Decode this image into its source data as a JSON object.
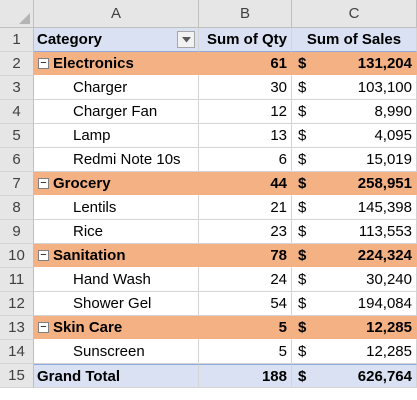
{
  "columns": [
    "A",
    "B",
    "C"
  ],
  "header": {
    "category": "Category",
    "qty": "Sum of Qty",
    "sales": "Sum of Sales"
  },
  "currency_symbol": "$",
  "rows": [
    {
      "num": "2",
      "type": "group",
      "label": "Electronics",
      "qty": "61",
      "sales": "131,204"
    },
    {
      "num": "3",
      "type": "item",
      "label": "Charger",
      "qty": "30",
      "sales": "103,100"
    },
    {
      "num": "4",
      "type": "item",
      "label": "Charger  Fan",
      "qty": "12",
      "sales": "8,990"
    },
    {
      "num": "5",
      "type": "item",
      "label": "Lamp",
      "qty": "13",
      "sales": "4,095"
    },
    {
      "num": "6",
      "type": "item",
      "label": "Redmi Note 10s",
      "qty": "6",
      "sales": "15,019"
    },
    {
      "num": "7",
      "type": "group",
      "label": "Grocery",
      "qty": "44",
      "sales": "258,951"
    },
    {
      "num": "8",
      "type": "item",
      "label": "Lentils",
      "qty": "21",
      "sales": "145,398"
    },
    {
      "num": "9",
      "type": "item",
      "label": "Rice",
      "qty": "23",
      "sales": "113,553"
    },
    {
      "num": "10",
      "type": "group",
      "label": "Sanitation",
      "qty": "78",
      "sales": "224,324"
    },
    {
      "num": "11",
      "type": "item",
      "label": "Hand Wash",
      "qty": "24",
      "sales": "30,240"
    },
    {
      "num": "12",
      "type": "item",
      "label": "Shower Gel",
      "qty": "54",
      "sales": "194,084"
    },
    {
      "num": "13",
      "type": "group",
      "label": "Skin Care",
      "qty": "5",
      "sales": "12,285"
    },
    {
      "num": "14",
      "type": "item",
      "label": "Sunscreen",
      "qty": "5",
      "sales": "12,285"
    }
  ],
  "total": {
    "num": "15",
    "label": "Grand Total",
    "qty": "188",
    "sales": "626,764"
  },
  "header_row_num": "1",
  "icons": {
    "filter": "filter-dropdown-icon",
    "collapse": "collapse-minus-icon"
  },
  "colors": {
    "group_fill": "#f4b183",
    "header_fill": "#d9e1f2"
  }
}
